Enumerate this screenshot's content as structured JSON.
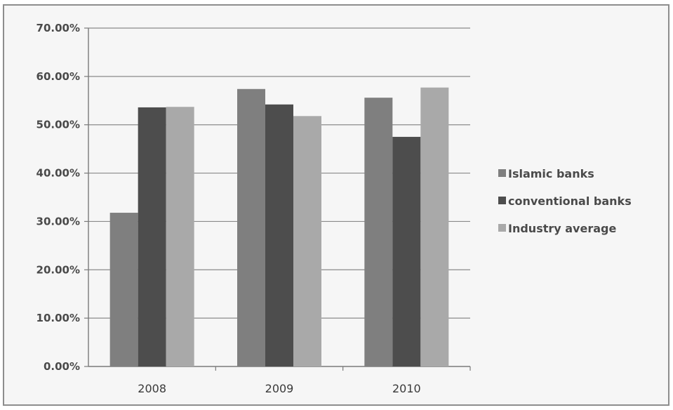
{
  "chart_data": {
    "type": "bar",
    "categories": [
      "2008",
      "2009",
      "2010"
    ],
    "series": [
      {
        "name": "Islamic banks",
        "values": [
          31.8,
          57.4,
          55.6
        ],
        "color": "#7f7f7f"
      },
      {
        "name": "conventional banks",
        "values": [
          53.6,
          54.2,
          47.5
        ],
        "color": "#4d4d4d"
      },
      {
        "name": "Industry average",
        "values": [
          53.7,
          51.8,
          57.7
        ],
        "color": "#a9a9a9"
      }
    ],
    "yticks": [
      "0.00%",
      "10.00%",
      "20.00%",
      "30.00%",
      "40.00%",
      "50.00%",
      "60.00%",
      "70.00%"
    ],
    "ylim": [
      0,
      70
    ],
    "grid": true,
    "legend_position": "right",
    "title": "",
    "xlabel": "",
    "ylabel": ""
  }
}
